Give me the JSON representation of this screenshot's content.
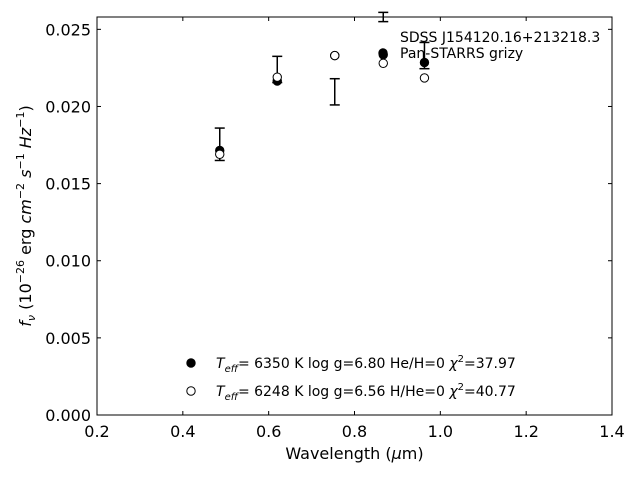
{
  "chart_data": {
    "type": "scatter",
    "title": "",
    "xlabel": "Wavelength (μm)",
    "ylabel": "f_ν (10^-26 erg cm^-2 s^-1 Hz^-1)",
    "xlim": [
      0.2,
      1.4
    ],
    "ylim": [
      0.0,
      0.0258
    ],
    "xticks": [
      0.2,
      0.4,
      0.6,
      0.8,
      1.0,
      1.2,
      1.4
    ],
    "xtick_labels": [
      "0.2",
      "0.4",
      "0.6",
      "0.8",
      "1.0",
      "1.2",
      "1.4"
    ],
    "yticks": [
      0.0,
      0.005,
      0.01,
      0.015,
      0.02,
      0.025
    ],
    "ytick_labels": [
      "0.000",
      "0.005",
      "0.010",
      "0.015",
      "0.020",
      "0.025"
    ],
    "grid": false,
    "legend": {
      "placement": "top-right",
      "entries": [
        "SDSS J154120.16+213218.3",
        "Pan-STARRS grizy"
      ]
    },
    "observed": {
      "name": "Pan-STARRS grizy",
      "x": [
        0.486,
        0.62,
        0.754,
        0.867,
        0.963
      ],
      "y": [
        0.01755,
        0.0224,
        0.02095,
        0.0258,
        0.0233
      ],
      "yerr": [
        0.00105,
        0.00085,
        0.00085,
        0.0003,
        0.00085
      ]
    },
    "series": [
      {
        "marker": "filled",
        "x": [
          0.486,
          0.62,
          0.754,
          0.867,
          0.963
        ],
        "y": [
          0.01715,
          0.02165,
          0.0233,
          0.02335,
          0.02285
        ]
      },
      {
        "marker": "open",
        "x": [
          0.486,
          0.62,
          0.754,
          0.867,
          0.963
        ],
        "y": [
          0.0169,
          0.0219,
          0.0233,
          0.0228,
          0.02185
        ]
      }
    ],
    "annotations": [
      {
        "marker": "filled",
        "teff_prefix": "T",
        "teff_sub": "eff",
        "text": "= 6350 K log g=6.80 He/H=0 ",
        "chi_symbol": "χ",
        "chi_sup": "2",
        "chi_value": "=37.97"
      },
      {
        "marker": "open",
        "teff_prefix": "T",
        "teff_sub": "eff",
        "text": "= 6248 K log g=6.56 H/He=0 ",
        "chi_symbol": "χ",
        "chi_sup": "2",
        "chi_value": "=40.77"
      }
    ]
  }
}
